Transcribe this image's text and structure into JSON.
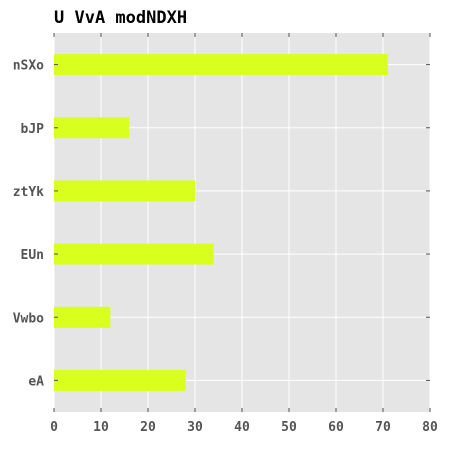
{
  "chart_data": {
    "type": "bar",
    "orientation": "horizontal",
    "title": "U VvA modNDXH",
    "xlabel": "",
    "ylabel": "",
    "categories": [
      "nSXo",
      "bJP",
      "ztYk",
      "EUn",
      "Vwbo",
      "eA"
    ],
    "values": [
      71,
      16,
      30,
      34,
      12,
      28
    ],
    "xlim": [
      0,
      80
    ],
    "xticks": [
      0,
      10,
      20,
      30,
      40,
      50,
      60,
      70,
      80
    ],
    "grid": true,
    "legend": "none"
  },
  "colors": {
    "bar": "#d9ff1e",
    "plot_background": "#e5e5e5",
    "grid": "#ffffff",
    "tick_label": "#555555",
    "title": "#000000"
  }
}
